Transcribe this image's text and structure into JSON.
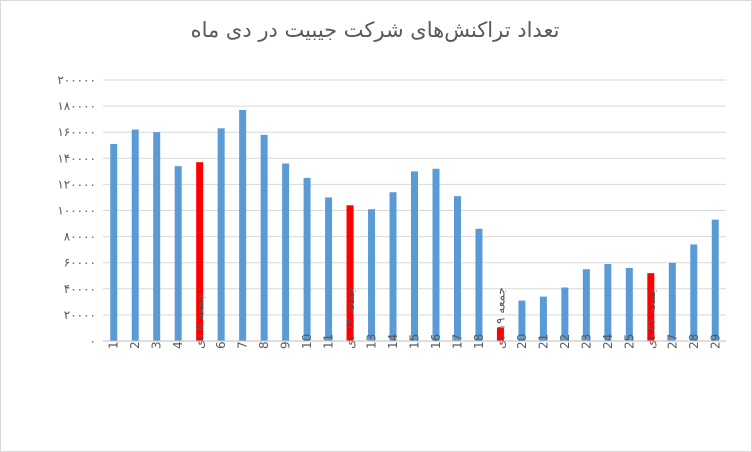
{
  "chart_data": {
    "type": "bar",
    "title": "تعداد تراکنش‌های شرکت جیبیت در دی ماه",
    "xlabel": "",
    "ylabel": "",
    "ylim": [
      0,
      200000
    ],
    "yticks": [
      0,
      20000,
      40000,
      60000,
      80000,
      100000,
      120000,
      140000,
      160000,
      180000,
      200000
    ],
    "ytick_labels": [
      "۰",
      "۲۰۰۰۰",
      "۴۰۰۰۰",
      "۶۰۰۰۰",
      "۸۰۰۰۰",
      "۱۰۰۰۰۰",
      "۱۲۰۰۰۰",
      "۱۴۰۰۰۰",
      "۱۶۰۰۰۰",
      "۱۸۰۰۰۰",
      "۲۰۰۰۰۰"
    ],
    "grid": true,
    "legend": "none",
    "categories": [
      "1",
      "2",
      "3",
      "4",
      "جمعه ۵ دی",
      "6",
      "7",
      "8",
      "9",
      "10",
      "11",
      "جمعه ۱۲ دی",
      "13",
      "14",
      "15",
      "16",
      "17",
      "18",
      "جمعه ۱۹ دی",
      "20",
      "21",
      "22",
      "23",
      "24",
      "25",
      "جمعه ۲۶ دی",
      "27",
      "28",
      "29"
    ],
    "values": [
      151000,
      162000,
      160000,
      134000,
      137000,
      163000,
      177000,
      158000,
      136000,
      125000,
      110000,
      104000,
      101000,
      114000,
      130000,
      132000,
      111000,
      86000,
      10000,
      31000,
      34000,
      41000,
      55000,
      59000,
      56000,
      52000,
      60000,
      74000,
      93000
    ],
    "highlight": [
      false,
      false,
      false,
      false,
      true,
      false,
      false,
      false,
      false,
      false,
      false,
      true,
      false,
      false,
      false,
      false,
      false,
      false,
      true,
      false,
      false,
      false,
      false,
      false,
      false,
      true,
      false,
      false,
      false
    ],
    "colors": {
      "normal": "#5b9bd5",
      "highlight": "#ff0000",
      "grid": "#d9d9d9",
      "text": "#595959"
    }
  }
}
